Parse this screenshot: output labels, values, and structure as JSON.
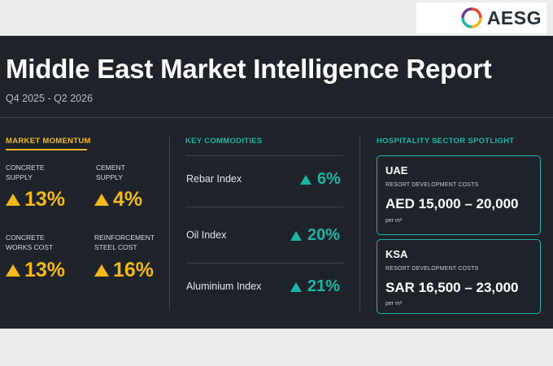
{
  "logo": {
    "text": "AESG",
    "icon": "aesg-ring-icon"
  },
  "header": {
    "title": "Middle East Market Intelligence Report",
    "subtitle": "Q4 2025 - Q2 2026"
  },
  "market_momentum": {
    "heading": "MARKET MOMENTUM",
    "items": [
      {
        "label_line1": "CONCRETE",
        "label_line2": "SUPPLY",
        "value": "13%"
      },
      {
        "label_line1": "CEMENT",
        "label_line2": "SUPPLY",
        "value": "4%"
      },
      {
        "label_line1": "CONCRETE",
        "label_line2": "WORKS COST",
        "value": "13%"
      },
      {
        "label_line1": "REINFORCEMENT",
        "label_line2": "STEEL COST",
        "value": "16%"
      }
    ]
  },
  "key_commodities": {
    "heading": "KEY COMMODITIES",
    "items": [
      {
        "name": "Rebar Index",
        "value": "6%"
      },
      {
        "name": "Oil Index",
        "value": "20%"
      },
      {
        "name": "Aluminium Index",
        "value": "21%"
      }
    ]
  },
  "hospitality": {
    "heading": "HOSPITALITY SECTOR SPOTLIGHT",
    "cards": [
      {
        "region": "UAE",
        "subtitle": "RESORT DEVELOPMENT COSTS",
        "value": "AED 15,000 – 20,000",
        "unit": "per m²"
      },
      {
        "region": "KSA",
        "subtitle": "RESORT DEVELOPMENT COSTS",
        "value": "SAR 16,500 – 23,000",
        "unit": "per m²"
      }
    ]
  },
  "colors": {
    "panel_bg": "#1d2329",
    "accent_yellow": "#f2b81c",
    "accent_teal": "#1fb5a6"
  }
}
